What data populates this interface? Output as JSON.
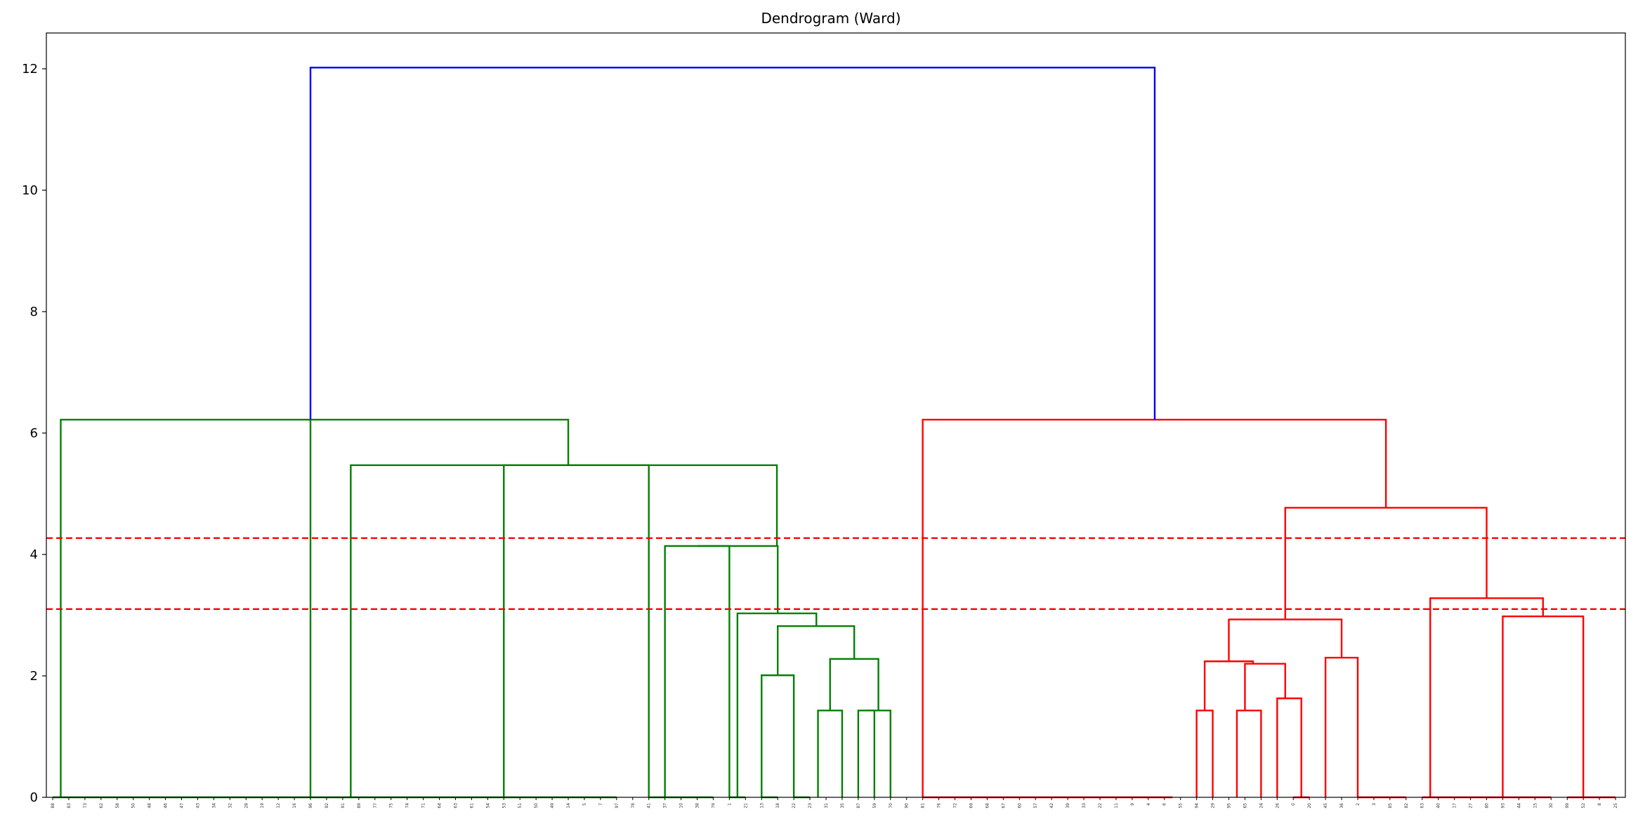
{
  "chart_data": {
    "type": "dendrogram",
    "title": "Dendrogram (Ward)",
    "xlabel": "",
    "ylabel": "",
    "ylim": [
      0,
      12.6
    ],
    "yticks": [
      0,
      2,
      4,
      6,
      8,
      10,
      12
    ],
    "grid": false,
    "legend": "none",
    "colors": {
      "root": "#0000ff",
      "cluster_1": "#008000",
      "cluster_2": "#ff0000",
      "threshold": "#ff0000"
    },
    "threshold_lines": [
      4.27,
      3.1
    ],
    "leaf_labels": [
      "88",
      "83",
      "73",
      "62",
      "58",
      "50",
      "48",
      "46",
      "47",
      "43",
      "34",
      "32",
      "28",
      "19",
      "12",
      "16",
      "96",
      "92",
      "91",
      "89",
      "77",
      "75",
      "74",
      "71",
      "64",
      "63",
      "61",
      "54",
      "53",
      "51",
      "50",
      "49",
      "14",
      "5",
      "7",
      "97",
      "78",
      "41",
      "37",
      "10",
      "38",
      "79",
      "1",
      "21",
      "13",
      "18",
      "22",
      "23",
      "31",
      "35",
      "87",
      "59",
      "70",
      "90",
      "81",
      "76",
      "72",
      "69",
      "68",
      "67",
      "60",
      "57",
      "42",
      "39",
      "33",
      "22",
      "11",
      "9",
      "4",
      "6",
      "55",
      "94",
      "29",
      "95",
      "65",
      "24",
      "26",
      "0",
      "20",
      "45",
      "36",
      "2",
      "3",
      "85",
      "82",
      "63",
      "40",
      "17",
      "27",
      "80",
      "93",
      "44",
      "15",
      "30",
      "99",
      "52",
      "8",
      "25"
    ],
    "links": [
      {
        "left": [
          0.5,
          0
        ],
        "right": [
          16,
          0
        ],
        "height": 6.22,
        "color": "cluster_1"
      },
      {
        "left": [
          18.5,
          0
        ],
        "right": [
          37,
          0
        ],
        "height": 5.47,
        "color": "cluster_1"
      },
      {
        "left": [
          38,
          0
        ],
        "right": [
          42,
          0
        ],
        "height": 4.14,
        "color": "cluster_1"
      },
      {
        "left": [
          44,
          0
        ],
        "right": [
          46,
          0
        ],
        "height": 2.01,
        "color": "cluster_1"
      },
      {
        "left": [
          47.5,
          0
        ],
        "right": [
          49,
          0
        ],
        "height": 1.43,
        "color": "cluster_1"
      },
      {
        "left": [
          50,
          0
        ],
        "right": [
          51,
          0
        ],
        "height": 1.43,
        "color": "cluster_1"
      },
      {
        "left": [
          50.5,
          1.43
        ],
        "right": [
          52,
          0
        ],
        "height": 1.43,
        "color": "cluster_1"
      },
      {
        "left": [
          48.25,
          1.43
        ],
        "right": [
          51.25,
          1.43
        ],
        "height": 2.28,
        "color": "cluster_1"
      },
      {
        "left": [
          45,
          2.01
        ],
        "right": [
          49.75,
          2.28
        ],
        "height": 2.82,
        "color": "cluster_1"
      },
      {
        "left": [
          42.5,
          0
        ],
        "right": [
          47.4,
          2.82
        ],
        "height": 3.03,
        "color": "cluster_1"
      },
      {
        "left": [
          40,
          4.14
        ],
        "right": [
          45,
          3.03
        ],
        "height": 4.14,
        "color": "cluster_1"
      },
      {
        "left": [
          28,
          0
        ],
        "right": [
          44.95,
          4.14
        ],
        "height": 5.47,
        "color": "cluster_1"
      },
      {
        "left": [
          16,
          6.22
        ],
        "right": [
          32,
          5.47
        ],
        "height": 6.22,
        "color": "cluster_1"
      },
      {
        "left": [
          71,
          0
        ],
        "right": [
          72,
          0
        ],
        "height": 1.43,
        "color": "cluster_2"
      },
      {
        "left": [
          73.5,
          0
        ],
        "right": [
          75,
          0
        ],
        "height": 1.43,
        "color": "cluster_2"
      },
      {
        "left": [
          76,
          0
        ],
        "right": [
          77.5,
          0
        ],
        "height": 1.63,
        "color": "cluster_2"
      },
      {
        "left": [
          74,
          1.43
        ],
        "right": [
          76.5,
          1.63
        ],
        "height": 2.2,
        "color": "cluster_2"
      },
      {
        "left": [
          71.5,
          1.43
        ],
        "right": [
          74.5,
          2.2
        ],
        "height": 2.24,
        "color": "cluster_2"
      },
      {
        "left": [
          79,
          0
        ],
        "right": [
          81,
          0
        ],
        "height": 2.3,
        "color": "cluster_2"
      },
      {
        "left": [
          73,
          2.24
        ],
        "right": [
          80,
          2.3
        ],
        "height": 2.93,
        "color": "cluster_2"
      },
      {
        "left": [
          90,
          0
        ],
        "right": [
          95,
          0
        ],
        "height": 2.98,
        "color": "cluster_2"
      },
      {
        "left": [
          85.5,
          0
        ],
        "right": [
          92.5,
          2.98
        ],
        "height": 3.28,
        "color": "cluster_2"
      },
      {
        "left": [
          76.5,
          2.93
        ],
        "right": [
          89,
          3.28
        ],
        "height": 4.77,
        "color": "cluster_2"
      },
      {
        "left": [
          54,
          0
        ],
        "right": [
          82.75,
          4.77
        ],
        "height": 6.22,
        "color": "cluster_2"
      },
      {
        "left": [
          16,
          6.22
        ],
        "right": [
          68.4,
          6.22
        ],
        "height": 12.02,
        "color": "root"
      }
    ],
    "leaf_stubs": [
      {
        "from": 0,
        "to": 16,
        "color": "cluster_1"
      },
      {
        "from": 16,
        "to": 35,
        "color": "cluster_1"
      },
      {
        "from": 37,
        "to": 41,
        "color": "cluster_1"
      },
      {
        "from": 42,
        "to": 43,
        "color": "cluster_1"
      },
      {
        "from": 44,
        "to": 45,
        "color": "cluster_1"
      },
      {
        "from": 46,
        "to": 47,
        "color": "cluster_1"
      },
      {
        "from": 54,
        "to": 69.5,
        "color": "cluster_2"
      },
      {
        "from": 77,
        "to": 78,
        "color": "cluster_2"
      },
      {
        "from": 81,
        "to": 84,
        "color": "cluster_2"
      },
      {
        "from": 85,
        "to": 90,
        "color": "cluster_2"
      },
      {
        "from": 90,
        "to": 93,
        "color": "cluster_2"
      },
      {
        "from": 94,
        "to": 97,
        "color": "cluster_2"
      }
    ]
  }
}
